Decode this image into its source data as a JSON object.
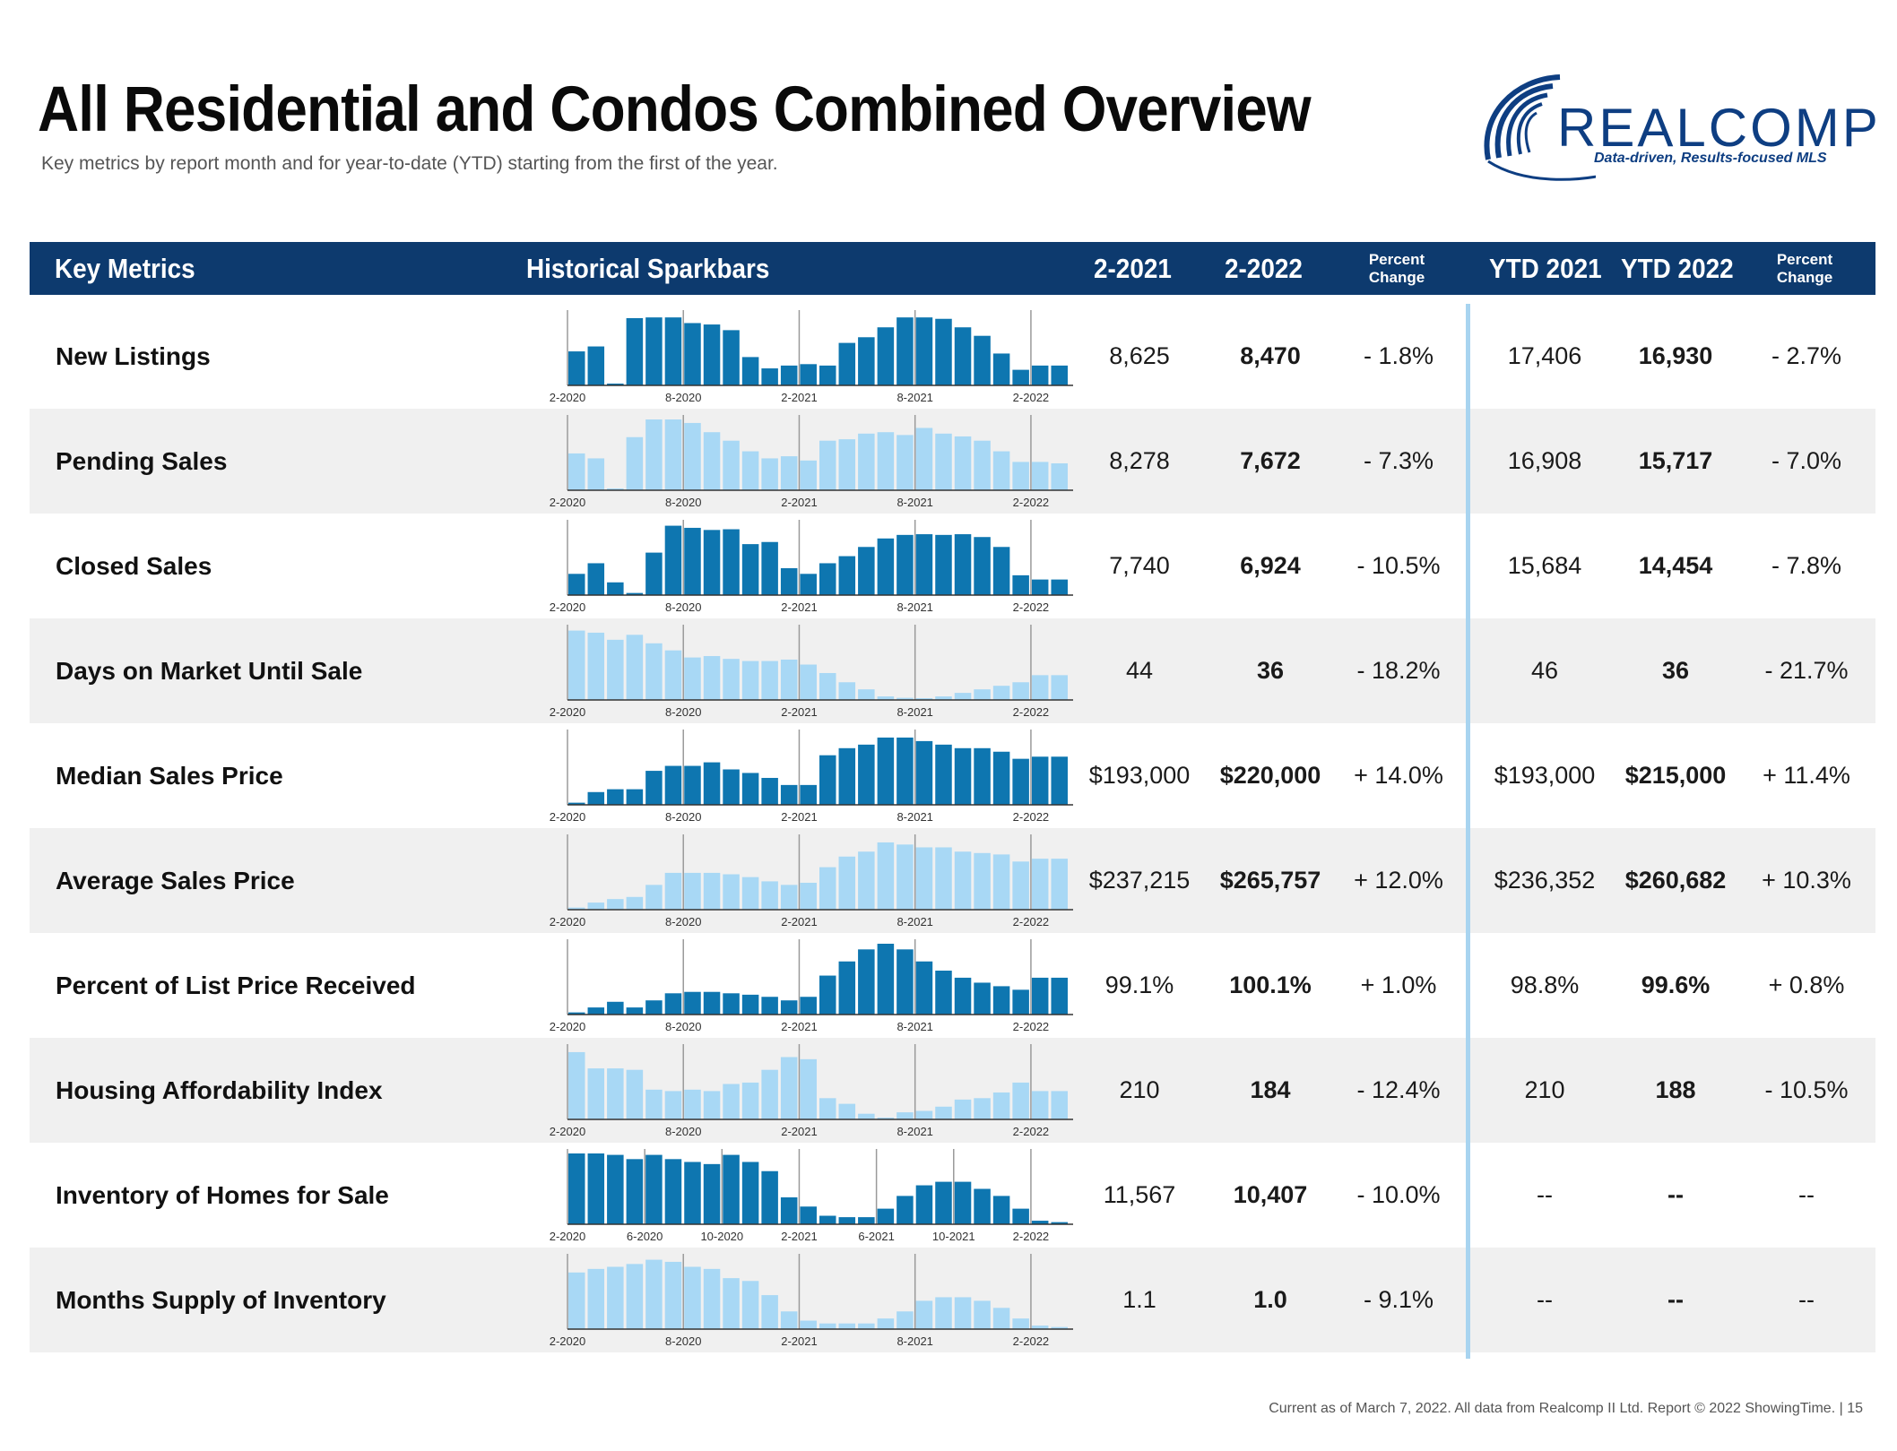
{
  "header": {
    "title": "All Residential and Condos Combined Overview",
    "subtitle": "Key metrics by report month and for year-to-date (YTD) starting from the first of the year."
  },
  "logo": {
    "word": "REALCOMP",
    "tagline": "Data-driven, Results-focused MLS",
    "color": "#0e3e82"
  },
  "table": {
    "columns": {
      "key_metrics": "Key Metrics",
      "sparkbars": "Historical Sparkbars",
      "m2021": "2-2021",
      "m2022": "2-2022",
      "pct_line1": "Percent",
      "pct_line2": "Change",
      "ytd2021": "YTD 2021",
      "ytd2022": "YTD 2022",
      "ytd_pct_line1": "Percent",
      "ytd_pct_line2": "Change"
    },
    "rows": [
      {
        "metric": "New Listings",
        "m2021": "8,625",
        "m2022": "8,470",
        "pct": "- 1.8%",
        "ytd2021": "17,406",
        "ytd2022": "16,930",
        "ytdpct": "- 2.7%"
      },
      {
        "metric": "Pending Sales",
        "m2021": "8,278",
        "m2022": "7,672",
        "pct": "- 7.3%",
        "ytd2021": "16,908",
        "ytd2022": "15,717",
        "ytdpct": "- 7.0%"
      },
      {
        "metric": "Closed Sales",
        "m2021": "7,740",
        "m2022": "6,924",
        "pct": "- 10.5%",
        "ytd2021": "15,684",
        "ytd2022": "14,454",
        "ytdpct": "- 7.8%"
      },
      {
        "metric": "Days on Market Until Sale",
        "m2021": "44",
        "m2022": "36",
        "pct": "- 18.2%",
        "ytd2021": "46",
        "ytd2022": "36",
        "ytdpct": "- 21.7%"
      },
      {
        "metric": "Median Sales Price",
        "m2021": "$193,000",
        "m2022": "$220,000",
        "pct": "+ 14.0%",
        "ytd2021": "$193,000",
        "ytd2022": "$215,000",
        "ytdpct": "+ 11.4%"
      },
      {
        "metric": "Average Sales Price",
        "m2021": "$237,215",
        "m2022": "$265,757",
        "pct": "+ 12.0%",
        "ytd2021": "$236,352",
        "ytd2022": "$260,682",
        "ytdpct": "+ 10.3%"
      },
      {
        "metric": "Percent of List Price Received",
        "m2021": "99.1%",
        "m2022": "100.1%",
        "pct": "+ 1.0%",
        "ytd2021": "98.8%",
        "ytd2022": "99.6%",
        "ytdpct": "+ 0.8%"
      },
      {
        "metric": "Housing Affordability Index",
        "m2021": "210",
        "m2022": "184",
        "pct": "- 12.4%",
        "ytd2021": "210",
        "ytd2022": "188",
        "ytdpct": "- 10.5%"
      },
      {
        "metric": "Inventory of Homes for Sale",
        "m2021": "11,567",
        "m2022": "10,407",
        "pct": "- 10.0%",
        "ytd2021": "--",
        "ytd2022": "--",
        "ytdpct": "--"
      },
      {
        "metric": "Months Supply of Inventory",
        "m2021": "1.1",
        "m2022": "1.0",
        "pct": "- 9.1%",
        "ytd2021": "--",
        "ytd2022": "--",
        "ytdpct": "--"
      }
    ]
  },
  "footer": {
    "note": "Current as of March 7, 2022. All data from Realcomp II Ltd. Report © 2022 ShowingTime.",
    "page": "15"
  },
  "colors": {
    "header_bg": "#0d3a6e",
    "dark_bar": "#0e76b0",
    "light_bar": "#a8d8f5",
    "divider": "#a8d4f0"
  },
  "chart_data": [
    {
      "type": "bar",
      "title": "New Listings",
      "bar_style": "dark",
      "ylim": [
        0,
        100
      ],
      "tick_labels": [
        "2-2020",
        "8-2020",
        "2-2021",
        "8-2021",
        "2-2022"
      ],
      "tick_months": [
        0,
        6,
        12,
        18,
        24
      ],
      "values": [
        48,
        55,
        2,
        95,
        96,
        96,
        88,
        86,
        78,
        40,
        24,
        28,
        30,
        28,
        60,
        68,
        82,
        96,
        96,
        94,
        82,
        70,
        45,
        22,
        28,
        28
      ]
    },
    {
      "type": "bar",
      "title": "Pending Sales",
      "bar_style": "light",
      "ylim": [
        0,
        100
      ],
      "tick_labels": [
        "2-2020",
        "8-2020",
        "2-2021",
        "8-2021",
        "2-2022"
      ],
      "tick_months": [
        0,
        6,
        12,
        18,
        24
      ],
      "values": [
        52,
        45,
        2,
        75,
        100,
        100,
        95,
        82,
        70,
        55,
        45,
        48,
        42,
        70,
        72,
        80,
        82,
        78,
        88,
        80,
        76,
        70,
        55,
        40,
        40,
        38
      ]
    },
    {
      "type": "bar",
      "title": "Closed Sales",
      "bar_style": "dark",
      "ylim": [
        0,
        100
      ],
      "tick_labels": [
        "2-2020",
        "8-2020",
        "2-2021",
        "8-2021",
        "2-2022"
      ],
      "tick_months": [
        0,
        6,
        12,
        18,
        24
      ],
      "values": [
        30,
        45,
        18,
        3,
        60,
        98,
        95,
        92,
        93,
        72,
        75,
        38,
        30,
        45,
        55,
        68,
        80,
        85,
        86,
        85,
        86,
        82,
        68,
        28,
        22,
        22
      ]
    },
    {
      "type": "bar",
      "title": "Days on Market Until Sale",
      "bar_style": "light",
      "ylim": [
        0,
        100
      ],
      "tick_labels": [
        "2-2020",
        "8-2020",
        "2-2021",
        "8-2021",
        "2-2022"
      ],
      "tick_months": [
        0,
        6,
        12,
        18,
        24
      ],
      "values": [
        98,
        95,
        85,
        92,
        80,
        70,
        60,
        62,
        58,
        55,
        55,
        57,
        50,
        38,
        25,
        15,
        5,
        3,
        2,
        5,
        10,
        15,
        20,
        25,
        35,
        35
      ]
    },
    {
      "type": "bar",
      "title": "Median Sales Price",
      "bar_style": "dark",
      "ylim": [
        0,
        100
      ],
      "tick_labels": [
        "2-2020",
        "8-2020",
        "2-2021",
        "8-2021",
        "2-2022"
      ],
      "tick_months": [
        0,
        6,
        12,
        18,
        24
      ],
      "values": [
        3,
        18,
        22,
        22,
        48,
        55,
        55,
        60,
        50,
        45,
        38,
        28,
        28,
        70,
        80,
        85,
        95,
        95,
        90,
        85,
        80,
        80,
        75,
        65,
        68,
        68
      ]
    },
    {
      "type": "bar",
      "title": "Average Sales Price",
      "bar_style": "light",
      "ylim": [
        0,
        100
      ],
      "tick_labels": [
        "2-2020",
        "8-2020",
        "2-2021",
        "8-2021",
        "2-2022"
      ],
      "tick_months": [
        0,
        6,
        12,
        18,
        24
      ],
      "values": [
        3,
        10,
        15,
        18,
        35,
        52,
        52,
        52,
        50,
        46,
        40,
        35,
        38,
        60,
        75,
        82,
        95,
        92,
        88,
        88,
        82,
        80,
        78,
        68,
        72,
        72
      ]
    },
    {
      "type": "bar",
      "title": "Percent of List Price Received",
      "bar_style": "dark",
      "ylim": [
        0,
        100
      ],
      "tick_labels": [
        "2-2020",
        "8-2020",
        "2-2021",
        "8-2021",
        "2-2022"
      ],
      "tick_months": [
        0,
        6,
        12,
        18,
        24
      ],
      "values": [
        3,
        10,
        18,
        10,
        20,
        30,
        32,
        32,
        30,
        28,
        25,
        20,
        25,
        55,
        75,
        92,
        100,
        92,
        75,
        62,
        52,
        45,
        40,
        35,
        52,
        52
      ]
    },
    {
      "type": "bar",
      "title": "Housing Affordability Index",
      "bar_style": "light",
      "ylim": [
        0,
        100
      ],
      "tick_labels": [
        "2-2020",
        "8-2020",
        "2-2021",
        "8-2021",
        "2-2022"
      ],
      "tick_months": [
        0,
        6,
        12,
        18,
        24
      ],
      "values": [
        95,
        72,
        72,
        70,
        42,
        40,
        42,
        40,
        50,
        52,
        70,
        88,
        85,
        30,
        22,
        8,
        2,
        10,
        12,
        18,
        28,
        30,
        38,
        52,
        40,
        40
      ]
    },
    {
      "type": "bar",
      "title": "Inventory of Homes for Sale",
      "bar_style": "dark",
      "ylim": [
        0,
        100
      ],
      "tick_labels": [
        "2-2020",
        "6-2020",
        "10-2020",
        "2-2021",
        "6-2021",
        "10-2021",
        "2-2022"
      ],
      "tick_months": [
        0,
        4,
        8,
        12,
        16,
        20,
        24
      ],
      "values": [
        100,
        100,
        98,
        92,
        98,
        92,
        88,
        85,
        98,
        88,
        75,
        38,
        25,
        12,
        10,
        10,
        22,
        40,
        55,
        60,
        60,
        50,
        40,
        22,
        5,
        3
      ]
    },
    {
      "type": "bar",
      "title": "Months Supply of Inventory",
      "bar_style": "light",
      "ylim": [
        0,
        100
      ],
      "tick_labels": [
        "2-2020",
        "8-2020",
        "2-2021",
        "8-2021",
        "2-2022"
      ],
      "tick_months": [
        0,
        6,
        12,
        18,
        24
      ],
      "values": [
        80,
        85,
        88,
        92,
        98,
        95,
        88,
        85,
        72,
        68,
        48,
        25,
        12,
        8,
        8,
        8,
        15,
        25,
        40,
        45,
        45,
        40,
        30,
        15,
        5,
        3
      ]
    }
  ]
}
